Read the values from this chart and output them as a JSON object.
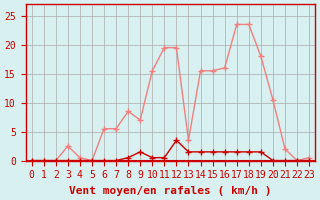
{
  "x": [
    0,
    1,
    2,
    3,
    4,
    5,
    6,
    7,
    8,
    9,
    10,
    11,
    12,
    13,
    14,
    15,
    16,
    17,
    18,
    19,
    20,
    21,
    22,
    23
  ],
  "y_rafales": [
    0,
    0,
    0,
    2.5,
    0.5,
    0,
    5.5,
    5.5,
    8.5,
    7,
    15.5,
    19.5,
    19.5,
    3.5,
    15.5,
    15.5,
    16,
    23.5,
    23.5,
    18,
    10.5,
    2,
    0,
    0.5
  ],
  "y_moyen": [
    0,
    0,
    0,
    0,
    0,
    0,
    0,
    0,
    0.5,
    1.5,
    0.5,
    0.5,
    3.5,
    1.5,
    1.5,
    1.5,
    1.5,
    1.5,
    1.5,
    1.5,
    0,
    0,
    0,
    0
  ],
  "bg_color": "#d9f0f0",
  "grid_color": "#aaaaaa",
  "line_color_rafales": "#f08080",
  "line_color_moyen": "#cc0000",
  "marker_color_rafales": "#f08080",
  "marker_color_moyen": "#cc0000",
  "xlabel": "Vent moyen/en rafales ( km/h )",
  "ylabel_ticks": [
    0,
    5,
    10,
    15,
    20,
    25
  ],
  "xlim": [
    -0.5,
    23.5
  ],
  "ylim": [
    0,
    27
  ],
  "xlabel_fontsize": 8,
  "tick_fontsize": 7,
  "arrow_color": "#cc0000"
}
